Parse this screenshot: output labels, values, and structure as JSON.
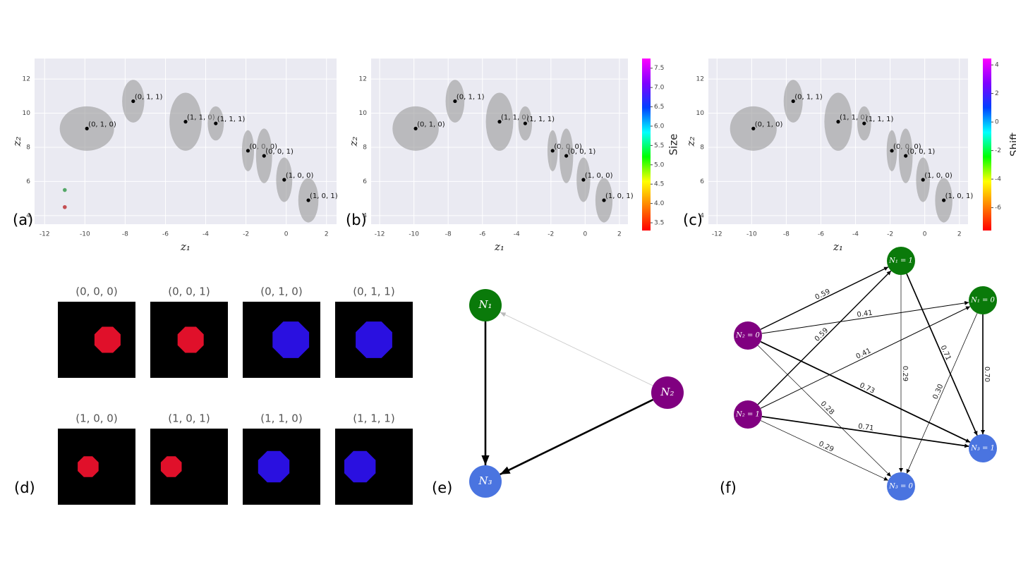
{
  "panel_labels": [
    "(a)",
    "(b)",
    "(c)",
    "(d)",
    "(e)",
    "(f)"
  ],
  "scatter": {
    "type": "scatter",
    "xlabel": "z₁",
    "ylabel": "z₂",
    "xlim": [
      -12.5,
      2.5
    ],
    "ylim": [
      3.5,
      13.2
    ],
    "xticks": [
      -12,
      -10,
      -8,
      -6,
      -4,
      -2,
      0,
      2
    ],
    "yticks": [
      4,
      6,
      8,
      10,
      12
    ],
    "grid": true,
    "clusters": [
      {
        "label": "(0, 1, 0)",
        "x": -9.9,
        "y": 9.1,
        "rx": 1.35,
        "ry": 1.3
      },
      {
        "label": "(0, 1, 1)",
        "x": -7.6,
        "y": 10.7,
        "rx": 0.55,
        "ry": 1.25
      },
      {
        "label": "(1, 1, 0)",
        "x": -5.0,
        "y": 9.5,
        "rx": 0.8,
        "ry": 1.7
      },
      {
        "label": "(1, 1, 1)",
        "x": -3.5,
        "y": 9.4,
        "rx": 0.4,
        "ry": 1.0
      },
      {
        "label": "(0, 0, 0)",
        "x": -1.9,
        "y": 7.8,
        "rx": 0.3,
        "ry": 1.2
      },
      {
        "label": "(0, 0, 1)",
        "x": -1.1,
        "y": 7.5,
        "rx": 0.4,
        "ry": 1.6
      },
      {
        "label": "(1, 0, 0)",
        "x": -0.1,
        "y": 6.1,
        "rx": 0.4,
        "ry": 1.3
      },
      {
        "label": "(1, 0, 1)",
        "x": 1.1,
        "y": 4.9,
        "rx": 0.5,
        "ry": 1.3
      }
    ],
    "extra_points": [
      {
        "x": -11,
        "y": 5.5,
        "color": "#55a868"
      },
      {
        "x": -11,
        "y": 4.5,
        "color": "#c44e52"
      }
    ],
    "colormap": [
      "#ff0000",
      "#ff8000",
      "#ffff00",
      "#00ff00",
      "#00ffff",
      "#0040ff",
      "#8000ff",
      "#ff00ff"
    ],
    "colorbars": [
      {
        "label": "Size",
        "lim": [
          3.3,
          7.75
        ],
        "ticks": [
          3.5,
          {
            "value": 4,
            "label": "4.0"
          },
          4.5,
          {
            "value": 5,
            "label": "5.0"
          },
          5.5,
          {
            "value": 6,
            "label": "6.0"
          },
          6.5,
          {
            "value": 7,
            "label": "7.0"
          },
          7.5
        ]
      },
      {
        "label": "Shift",
        "lim": [
          -7.6,
          4.45
        ],
        "ticks": [
          -6,
          -4,
          -2,
          0,
          2,
          4
        ]
      }
    ]
  },
  "images": [
    {
      "title": "(0, 0, 0)"
    },
    {
      "title": "(0, 0, 1)"
    },
    {
      "title": "(0, 1, 0)"
    },
    {
      "title": "(0, 1, 1)"
    },
    {
      "title": "(1, 0, 0)"
    },
    {
      "title": "(1, 0, 1)"
    },
    {
      "title": "(1, 1, 0)"
    },
    {
      "title": "(1, 1, 1)"
    }
  ],
  "graph_e": {
    "nodes": [
      {
        "label": "N₁",
        "color": "#0a7a0a"
      },
      {
        "label": "N₂",
        "color": "#800080"
      },
      {
        "label": "N₃",
        "color": "#4a74e0"
      }
    ],
    "edges": [
      {
        "from": 0,
        "to": 2,
        "strong": true
      },
      {
        "from": 1,
        "to": 2,
        "strong": true
      },
      {
        "from": 1,
        "to": 0,
        "strong": false
      }
    ]
  },
  "graph_f": {
    "nodes": [
      {
        "label": "N₁ = 1",
        "color": "#0a7a0a"
      },
      {
        "label": "N₁ = 0",
        "color": "#0a7a0a"
      },
      {
        "label": "N₂ = 0",
        "color": "#800080"
      },
      {
        "label": "N₂ = 1",
        "color": "#800080"
      },
      {
        "label": "N₃ = 1",
        "color": "#4a74e0"
      },
      {
        "label": "N₃ = 0",
        "color": "#4a74e0"
      }
    ],
    "edges": [
      {
        "from": 2,
        "to": 0,
        "weight": 0.59
      },
      {
        "from": 2,
        "to": 1,
        "weight": 0.41
      },
      {
        "from": 3,
        "to": 0,
        "weight": 0.59
      },
      {
        "from": 3,
        "to": 1,
        "weight": 0.41
      },
      {
        "from": 0,
        "to": 5,
        "weight": 0.29
      },
      {
        "from": 0,
        "to": 4,
        "weight": 0.71
      },
      {
        "from": 1,
        "to": 4,
        "weight": {
          "value": 0.7,
          "label": "0.70"
        }
      },
      {
        "from": 1,
        "to": 5,
        "weight": {
          "value": 0.3,
          "label": "0.30"
        }
      },
      {
        "from": 2,
        "to": 4,
        "weight": 0.73
      },
      {
        "from": 2,
        "to": 5,
        "weight": 0.28
      },
      {
        "from": 3,
        "to": 4,
        "weight": 0.71
      },
      {
        "from": 3,
        "to": 5,
        "weight": 0.29
      }
    ]
  }
}
